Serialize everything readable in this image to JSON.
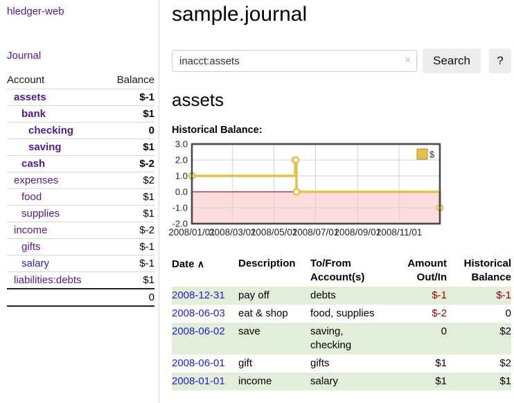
{
  "app": {
    "brand": "hledger-web"
  },
  "sidebar": {
    "nav": {
      "journal": "Journal"
    },
    "accounts": {
      "col_account": "Account",
      "col_balance": "Balance",
      "rows": [
        {
          "name": "assets",
          "indent": 1,
          "bold": true,
          "balance": "$-1",
          "balance_class": "neg-strong",
          "link": "purple"
        },
        {
          "name": "bank",
          "indent": 2,
          "bold": true,
          "balance": "$1",
          "balance_class": "pos",
          "link": "purple"
        },
        {
          "name": "checking",
          "indent": 3,
          "bold": true,
          "balance": "0",
          "balance_class": "pos",
          "link": "purple"
        },
        {
          "name": "saving",
          "indent": 3,
          "bold": true,
          "balance": "$1",
          "balance_class": "pos",
          "link": "purple"
        },
        {
          "name": "cash",
          "indent": 2,
          "bold": true,
          "balance": "$-2",
          "balance_class": "neg-strong",
          "link": "purple"
        },
        {
          "name": "expenses",
          "indent": 1,
          "bold": false,
          "balance": "$2",
          "balance_class": "pos",
          "link": "purple"
        },
        {
          "name": "food",
          "indent": 2,
          "bold": false,
          "balance": "$1",
          "balance_class": "pos",
          "link": "purple"
        },
        {
          "name": "supplies",
          "indent": 2,
          "bold": false,
          "balance": "$1",
          "balance_class": "pos",
          "link": "purple"
        },
        {
          "name": "income",
          "indent": 1,
          "bold": false,
          "balance": "$-2",
          "balance_class": "neg-muted",
          "link": "purple"
        },
        {
          "name": "gifts",
          "indent": 2,
          "bold": false,
          "balance": "$-1",
          "balance_class": "neg-muted",
          "link": "purple"
        },
        {
          "name": "salary",
          "indent": 2,
          "bold": false,
          "balance": "$-1",
          "balance_class": "neg-muted",
          "link": "blue"
        },
        {
          "name": "liabilities:debts",
          "indent": 1,
          "bold": false,
          "balance": "$1",
          "balance_class": "pos",
          "link": "purple"
        }
      ],
      "total": "0"
    }
  },
  "main": {
    "title": "sample.journal",
    "search": {
      "value": "inacct:assets",
      "clear_icon": "×",
      "search_button": "Search",
      "help_button": "?"
    },
    "account_heading": "assets",
    "chart_title": "Historical Balance:"
  },
  "chart_data": {
    "type": "line",
    "title": "Historical Balance:",
    "step": true,
    "series": [
      {
        "name": "$",
        "points": [
          [
            "2008-01-01",
            1
          ],
          [
            "2008-06-01",
            2
          ],
          [
            "2008-06-02",
            2
          ],
          [
            "2008-06-03",
            0
          ],
          [
            "2008-12-31",
            -1
          ]
        ]
      }
    ],
    "x_ticks": [
      "2008/01/01",
      "2008/03/01",
      "2008/05/01",
      "2008/07/01",
      "2008/09/01",
      "2008/11/01"
    ],
    "x_domain_days": [
      "2008-01-01",
      "2008-12-31"
    ],
    "y_ticks": [
      "3.0",
      "2.0",
      "1.0",
      "0.0",
      "-1.0",
      "-2.0"
    ],
    "ylim": [
      -2,
      3
    ],
    "grid": true,
    "legend": {
      "label": "$",
      "position": "top-right"
    },
    "colors": {
      "line": "#e3bf4d",
      "marker_fill": "#fffdf5",
      "negative_region": "#fcdcdc",
      "zero_line": "#8e1f1f",
      "grid": "#d2d2d2",
      "border": "#4a4a4a",
      "legend_square_border": "#b3912f"
    }
  },
  "register": {
    "headers": {
      "date": "Date",
      "sort_icon": "∧",
      "description": "Description",
      "accounts": "To/From Account(s)",
      "amount": "Amount Out/In",
      "balance": "Historical Balance"
    },
    "rows": [
      {
        "date": "2008-12-31",
        "description": "pay off",
        "accounts": "debts",
        "amount": "$-1",
        "amount_negative": true,
        "balance": "$-1",
        "balance_negative": true,
        "stripe": true
      },
      {
        "date": "2008-06-03",
        "description": "eat & shop",
        "accounts": "food, supplies",
        "amount": "$-2",
        "amount_negative": true,
        "balance": "0",
        "balance_negative": false,
        "stripe": false
      },
      {
        "date": "2008-06-02",
        "description": "save",
        "accounts": "saving, checking",
        "amount": "0",
        "amount_negative": false,
        "balance": "$2",
        "balance_negative": false,
        "stripe": true
      },
      {
        "date": "2008-06-01",
        "description": "gift",
        "accounts": "gifts",
        "amount": "$1",
        "amount_negative": false,
        "balance": "$2",
        "balance_negative": false,
        "stripe": false
      },
      {
        "date": "2008-01-01",
        "description": "income",
        "accounts": "salary",
        "amount": "$1",
        "amount_negative": false,
        "balance": "$1",
        "balance_negative": false,
        "stripe": true
      }
    ]
  },
  "colors": {
    "link_purple": "#551a8b",
    "link_blue": "#2222cc",
    "negative": "#990000",
    "negative_muted": "#b36b6b",
    "row_stripe_green": "#e2eeda"
  }
}
